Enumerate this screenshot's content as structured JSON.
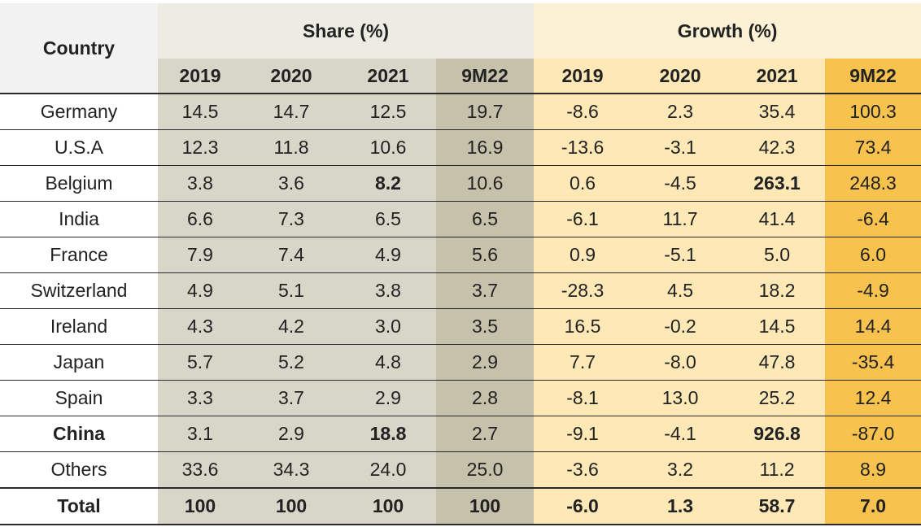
{
  "header": {
    "country_label": "Country",
    "share_label": "Share (%)",
    "growth_label": "Growth (%)",
    "years": [
      "2019",
      "2020",
      "2021",
      "9M22"
    ]
  },
  "rows": [
    {
      "country": "Germany",
      "share": [
        "14.5",
        "14.7",
        "12.5",
        "19.7"
      ],
      "growth": [
        "-8.6",
        "2.3",
        "35.4",
        "100.3"
      ]
    },
    {
      "country": "U.S.A",
      "share": [
        "12.3",
        "11.8",
        "10.6",
        "16.9"
      ],
      "growth": [
        "-13.6",
        "-3.1",
        "42.3",
        "73.4"
      ]
    },
    {
      "country": "Belgium",
      "share": [
        "3.8",
        "3.6",
        "8.2",
        "10.6"
      ],
      "growth": [
        "0.6",
        "-4.5",
        "263.1",
        "248.3"
      ]
    },
    {
      "country": "India",
      "share": [
        "6.6",
        "7.3",
        "6.5",
        "6.5"
      ],
      "growth": [
        "-6.1",
        "11.7",
        "41.4",
        "-6.4"
      ]
    },
    {
      "country": "France",
      "share": [
        "7.9",
        "7.4",
        "4.9",
        "5.6"
      ],
      "growth": [
        "0.9",
        "-5.1",
        "5.0",
        "6.0"
      ]
    },
    {
      "country": "Switzerland",
      "share": [
        "4.9",
        "5.1",
        "3.8",
        "3.7"
      ],
      "growth": [
        "-28.3",
        "4.5",
        "18.2",
        "-4.9"
      ]
    },
    {
      "country": "Ireland",
      "share": [
        "4.3",
        "4.2",
        "3.0",
        "3.5"
      ],
      "growth": [
        "16.5",
        "-0.2",
        "14.5",
        "14.4"
      ]
    },
    {
      "country": "Japan",
      "share": [
        "5.7",
        "5.2",
        "4.8",
        "2.9"
      ],
      "growth": [
        "7.7",
        "-8.0",
        "47.8",
        "-35.4"
      ]
    },
    {
      "country": "Spain",
      "share": [
        "3.3",
        "3.7",
        "2.9",
        "2.8"
      ],
      "growth": [
        "-8.1",
        "13.0",
        "25.2",
        "12.4"
      ]
    },
    {
      "country": "China",
      "share": [
        "3.1",
        "2.9",
        "18.8",
        "2.7"
      ],
      "growth": [
        "-9.1",
        "-4.1",
        "926.8",
        "-87.0"
      ]
    },
    {
      "country": "Others",
      "share": [
        "33.6",
        "34.3",
        "24.0",
        "25.0"
      ],
      "growth": [
        "-3.6",
        "3.2",
        "11.2",
        "8.9"
      ]
    }
  ],
  "total": {
    "country": "Total",
    "share": [
      "100",
      "100",
      "100",
      "100"
    ],
    "growth": [
      "-6.0",
      "1.3",
      "58.7",
      "7.0"
    ]
  },
  "colors": {
    "share_col": "#d8d6c9",
    "share_9m22": "#c6c1ab",
    "growth_col": "#fde8b6",
    "growth_9m22": "#f8c24f"
  }
}
